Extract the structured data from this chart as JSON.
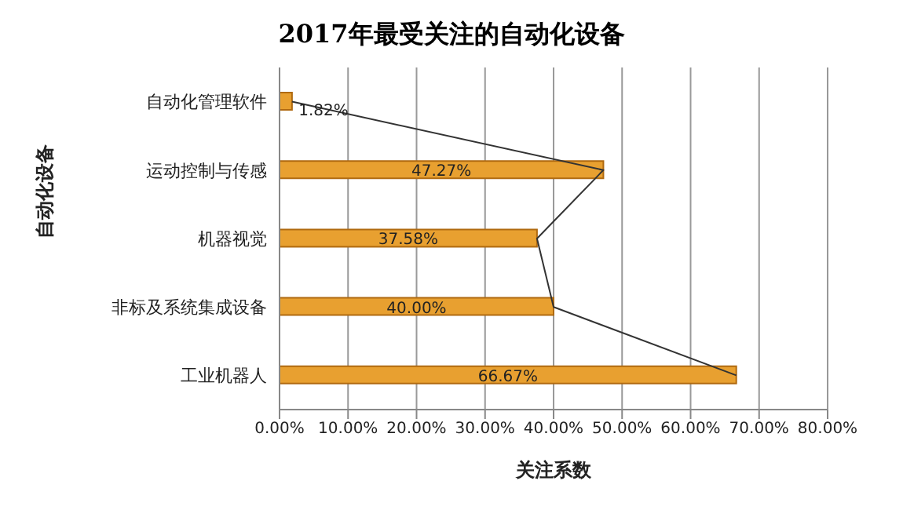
{
  "chart_data": {
    "type": "bar",
    "orientation": "horizontal",
    "title": "2017年最受关注的自动化设备",
    "xlabel": "关注系数",
    "ylabel": "自动化设备",
    "categories": [
      "自动化管理软件",
      "运动控制与传感",
      "机器视觉",
      "非标及系统集成设备",
      "工业机器人"
    ],
    "series": [
      {
        "color": "#e8a030",
        "values": [
          1.82,
          47.27,
          37.58,
          40.0,
          66.67
        ],
        "value_labels": [
          "1.82%",
          "47.27%",
          "37.58%",
          "40.00%",
          "66.67%"
        ]
      },
      {
        "type": "line",
        "color": "#333333",
        "values": [
          1.82,
          47.27,
          37.58,
          40.0,
          66.67
        ]
      }
    ],
    "xlim": [
      0,
      80
    ],
    "xticks": [
      {
        "value": 0,
        "label": "0.00%"
      },
      {
        "value": 10,
        "label": "10.00%"
      },
      {
        "value": 20,
        "label": "20.00%"
      },
      {
        "value": 30,
        "label": "30.00%"
      },
      {
        "value": 40,
        "label": "40.00%"
      },
      {
        "value": 50,
        "label": "50.00%"
      },
      {
        "value": 60,
        "label": "60.00%"
      },
      {
        "value": 70,
        "label": "70.00%"
      },
      {
        "value": 80,
        "label": "80.00%"
      }
    ],
    "grid": "x",
    "marker": "none"
  }
}
